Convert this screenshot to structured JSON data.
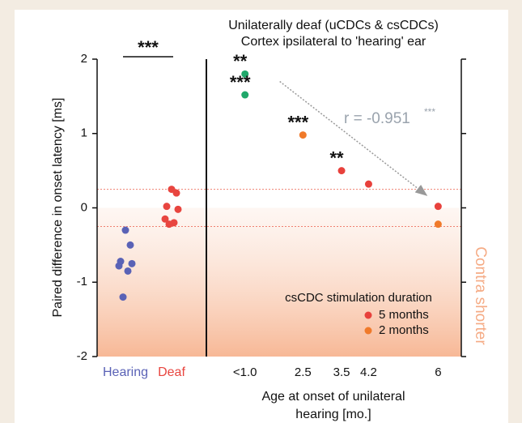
{
  "chart_data": [
    {
      "type": "strip",
      "categories": [
        "Hearing",
        "Deaf"
      ],
      "values": [
        [
          -0.3,
          -0.5,
          -0.72,
          -0.75,
          -0.78,
          -0.85,
          -1.2
        ],
        [
          0.25,
          0.2,
          0.02,
          -0.02,
          -0.15,
          -0.2,
          -0.22
        ]
      ],
      "colors": [
        "#5a62b6",
        "#e8453f"
      ],
      "ylim": [
        -2,
        2
      ],
      "yticks": [
        2,
        1,
        0,
        -1,
        -2
      ],
      "y_label": "Paired difference in onset latency [ms]",
      "annotation": "***"
    },
    {
      "type": "scatter",
      "title_lines": [
        "Unilaterally deaf (uCDCs & csCDCs)",
        "Cortex ipsilateral to 'hearing' ear"
      ],
      "x_label_lines": [
        "Age at onset of unilateral",
        "hearing [mo.]"
      ],
      "xlim": [
        0,
        6.6
      ],
      "xticks": [
        {
          "value": 1,
          "label": "<1.0"
        },
        2.5,
        3.5,
        4.2,
        6
      ],
      "ylim": [
        -2,
        2
      ],
      "series": [
        {
          "color": "#1fa86a",
          "x": [
            1,
            1
          ],
          "values": [
            1.8,
            1.52
          ],
          "point_labels": [
            "**",
            "***"
          ]
        },
        {
          "name": "5 months",
          "color": "#e8413c",
          "x": [
            3.5,
            4.2,
            6
          ],
          "values": [
            0.5,
            0.32,
            0.02
          ],
          "point_labels": [
            "**",
            null,
            null
          ]
        },
        {
          "name": "2 months",
          "color": "#f07a2a",
          "x": [
            2.5,
            6
          ],
          "values": [
            0.98,
            -0.22
          ],
          "point_labels": [
            "***",
            null
          ]
        }
      ],
      "legend_title": "csCDC stimulation duration",
      "r_label": "r = -0.951",
      "r_significance": "***",
      "trend_arrow": {
        "x": [
          1.9,
          5.7
        ],
        "y": [
          1.7,
          0.17
        ]
      },
      "reference_lines": [
        0.25,
        -0.25
      ],
      "shaded_below": 0,
      "shade_label": "Contra shorter"
    }
  ]
}
